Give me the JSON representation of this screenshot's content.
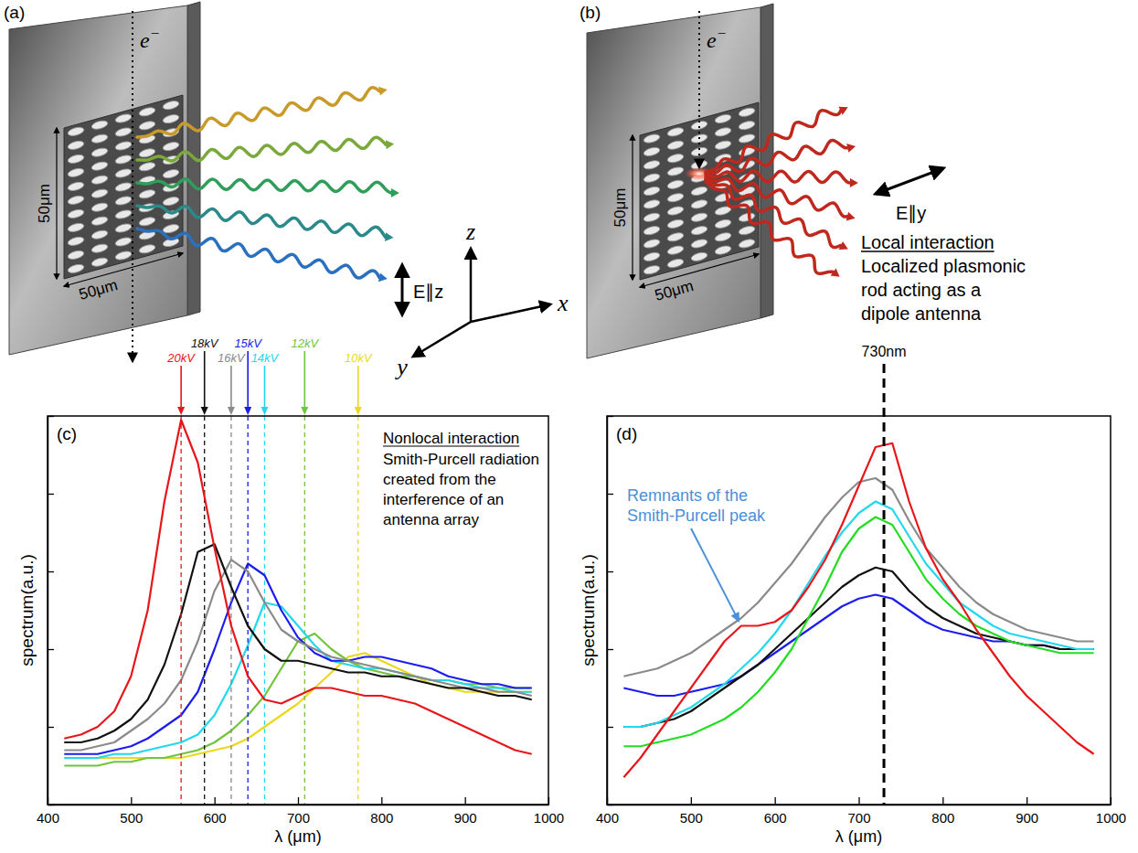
{
  "diagrams": [
    {
      "label": "(a)",
      "electron": "e",
      "electron_charge": "−",
      "height": "50μm",
      "width": "50μm",
      "polarization": "E∥z"
    },
    {
      "label": "(b)",
      "electron": "e",
      "electron_charge": "−",
      "height": "50μm",
      "width": "50μm",
      "polarization": "E∥y",
      "heading": "Local interaction",
      "lines": [
        "Localized plasmonic",
        "rod acting as a",
        "dipole antenna"
      ]
    }
  ],
  "axis_triad": {
    "z": "z",
    "y": "y",
    "x": "x"
  },
  "chart_data": [
    {
      "type": "line",
      "title": "(c)",
      "x_label": "λ (μm)",
      "y_label": "spectrum(a.u.)",
      "x": [
        420,
        440,
        460,
        480,
        500,
        520,
        540,
        560,
        580,
        600,
        620,
        640,
        660,
        680,
        700,
        720,
        740,
        760,
        780,
        800,
        820,
        840,
        860,
        880,
        900,
        920,
        940,
        960,
        980
      ],
      "series": [
        {
          "name": "20kV",
          "color": "#e8161b",
          "peak": 560,
          "values": [
            1.7,
            1.8,
            2.0,
            2.4,
            3.3,
            5.0,
            7.8,
            9.9,
            8.8,
            6.6,
            4.6,
            3.3,
            2.7,
            2.6,
            2.8,
            3.0,
            3.0,
            2.9,
            2.8,
            2.8,
            2.7,
            2.6,
            2.4,
            2.2,
            2.0,
            1.8,
            1.6,
            1.4,
            1.3
          ]
        },
        {
          "name": "18kV",
          "color": "#111111",
          "peak": 588,
          "values": [
            1.6,
            1.6,
            1.7,
            1.9,
            2.2,
            2.7,
            3.6,
            4.9,
            6.5,
            6.7,
            5.6,
            4.6,
            4.0,
            3.7,
            3.7,
            3.6,
            3.5,
            3.4,
            3.4,
            3.3,
            3.3,
            3.2,
            3.1,
            3.0,
            3.0,
            2.9,
            2.8,
            2.8,
            2.7
          ]
        },
        {
          "name": "16kV",
          "color": "#8a8a8a",
          "peak": 620,
          "values": [
            1.4,
            1.4,
            1.5,
            1.6,
            1.9,
            2.2,
            2.6,
            3.2,
            4.2,
            5.5,
            6.3,
            6.0,
            5.2,
            4.5,
            4.2,
            4.0,
            3.8,
            3.7,
            3.6,
            3.5,
            3.4,
            3.3,
            3.2,
            3.1,
            3.0,
            3.0,
            2.9,
            2.9,
            2.8
          ]
        },
        {
          "name": "15kV",
          "color": "#1c1cf0",
          "peak": 640,
          "values": [
            1.3,
            1.3,
            1.3,
            1.4,
            1.5,
            1.7,
            2.0,
            2.3,
            2.9,
            4.0,
            5.2,
            6.2,
            5.9,
            5.0,
            4.3,
            3.9,
            3.7,
            3.7,
            3.8,
            3.8,
            3.7,
            3.6,
            3.5,
            3.3,
            3.2,
            3.1,
            3.1,
            3.0,
            3.0
          ]
        },
        {
          "name": "14kV",
          "color": "#22d8ec",
          "peak": 660,
          "values": [
            1.2,
            1.2,
            1.2,
            1.3,
            1.3,
            1.4,
            1.5,
            1.6,
            1.8,
            2.3,
            3.1,
            4.1,
            5.2,
            5.1,
            4.6,
            4.1,
            3.7,
            3.6,
            3.5,
            3.5,
            3.4,
            3.3,
            3.2,
            3.2,
            3.1,
            3.0,
            3.0,
            2.9,
            2.9
          ]
        },
        {
          "name": "12kV",
          "color": "#72c43c",
          "peak": 708,
          "values": [
            1.0,
            1.0,
            1.0,
            1.1,
            1.1,
            1.2,
            1.2,
            1.3,
            1.4,
            1.6,
            1.9,
            2.3,
            2.8,
            3.5,
            4.2,
            4.4,
            4.0,
            3.7,
            3.5,
            3.4,
            3.3,
            3.3,
            3.2,
            3.2,
            3.1,
            3.1,
            3.0,
            3.0,
            3.0
          ]
        },
        {
          "name": "10kV",
          "color": "#ecd81a",
          "peak": 772,
          "values": [
            1.2,
            1.2,
            1.2,
            1.2,
            1.2,
            1.2,
            1.2,
            1.2,
            1.3,
            1.4,
            1.5,
            1.7,
            2.0,
            2.3,
            2.6,
            3.0,
            3.4,
            3.8,
            3.9,
            3.7,
            3.5,
            3.3,
            3.1,
            3.0,
            2.9,
            2.9,
            2.9,
            2.9,
            2.9
          ]
        }
      ],
      "xlim": [
        400,
        1000
      ],
      "xticks": [
        400,
        500,
        600,
        700,
        800,
        900,
        1000
      ],
      "ylim": [
        0,
        10
      ],
      "yticks": [
        0,
        2,
        4,
        6,
        8,
        10
      ],
      "tick_labels": "x",
      "annotation": {
        "heading": "Nonlocal interaction",
        "lines": [
          "Smith-Purcell radiation",
          "created from the",
          "interference of an",
          "antenna array"
        ]
      }
    },
    {
      "type": "line",
      "title": "(d)",
      "x_label": "λ (μm)",
      "y_label": "spectrum(a.u.)",
      "x": [
        420,
        440,
        460,
        480,
        500,
        520,
        540,
        560,
        580,
        600,
        620,
        640,
        660,
        680,
        700,
        720,
        740,
        760,
        780,
        800,
        820,
        840,
        860,
        880,
        900,
        920,
        940,
        960,
        980
      ],
      "series": [
        {
          "color": "#e8161b",
          "values": [
            0.7,
            1.2,
            1.8,
            2.4,
            3.0,
            3.6,
            4.2,
            4.6,
            4.6,
            4.7,
            5.0,
            5.6,
            6.3,
            7.2,
            8.2,
            9.2,
            9.3,
            7.8,
            6.6,
            5.8,
            5.2,
            4.5,
            3.9,
            3.3,
            2.8,
            2.4,
            2.0,
            1.6,
            1.3
          ]
        },
        {
          "color": "#8a8a8a",
          "values": [
            3.3,
            3.4,
            3.5,
            3.7,
            3.9,
            4.2,
            4.5,
            4.8,
            5.2,
            5.7,
            6.2,
            6.8,
            7.4,
            7.9,
            8.3,
            8.4,
            8.1,
            7.3,
            6.6,
            6.1,
            5.6,
            5.2,
            4.9,
            4.7,
            4.5,
            4.4,
            4.3,
            4.2,
            4.2
          ]
        },
        {
          "color": "#22d8ec",
          "values": [
            2.0,
            2.0,
            2.1,
            2.3,
            2.5,
            2.8,
            3.1,
            3.5,
            3.9,
            4.4,
            5.0,
            5.7,
            6.4,
            7.0,
            7.5,
            7.8,
            7.6,
            6.9,
            6.2,
            5.7,
            5.2,
            4.9,
            4.6,
            4.4,
            4.3,
            4.2,
            4.1,
            4.0,
            4.0
          ]
        },
        {
          "color": "#22dd22",
          "values": [
            1.5,
            1.5,
            1.6,
            1.7,
            1.8,
            2.0,
            2.2,
            2.5,
            2.9,
            3.4,
            4.0,
            4.8,
            5.6,
            6.5,
            7.1,
            7.4,
            7.2,
            6.5,
            5.8,
            5.3,
            4.9,
            4.6,
            4.4,
            4.2,
            4.1,
            4.0,
            3.9,
            3.9,
            3.9
          ]
        },
        {
          "color": "#111111",
          "values": [
            2.0,
            2.0,
            2.1,
            2.2,
            2.4,
            2.7,
            3.0,
            3.3,
            3.6,
            4.0,
            4.4,
            4.8,
            5.2,
            5.6,
            5.9,
            6.1,
            6.0,
            5.5,
            5.1,
            4.8,
            4.6,
            4.4,
            4.3,
            4.2,
            4.1,
            4.1,
            4.0,
            4.0,
            4.0
          ]
        },
        {
          "color": "#1c1cf0",
          "values": [
            3.0,
            2.9,
            2.8,
            2.8,
            2.9,
            3.0,
            3.1,
            3.3,
            3.6,
            3.9,
            4.2,
            4.5,
            4.8,
            5.1,
            5.3,
            5.4,
            5.3,
            5.0,
            4.7,
            4.5,
            4.4,
            4.3,
            4.2,
            4.2,
            4.1,
            4.1,
            4.0,
            4.0,
            4.0
          ]
        }
      ],
      "xlim": [
        400,
        1000
      ],
      "xticks": [
        400,
        500,
        600,
        700,
        800,
        900,
        1000
      ],
      "ylim": [
        0,
        10
      ],
      "yticks": [
        0,
        2,
        4,
        6,
        8,
        10
      ],
      "tick_labels": "x",
      "reference_line": {
        "value": 730,
        "label": "730nm"
      },
      "annotation": {
        "lines": [
          "Remnants of the",
          "Smith-Purcell peak"
        ]
      }
    }
  ]
}
